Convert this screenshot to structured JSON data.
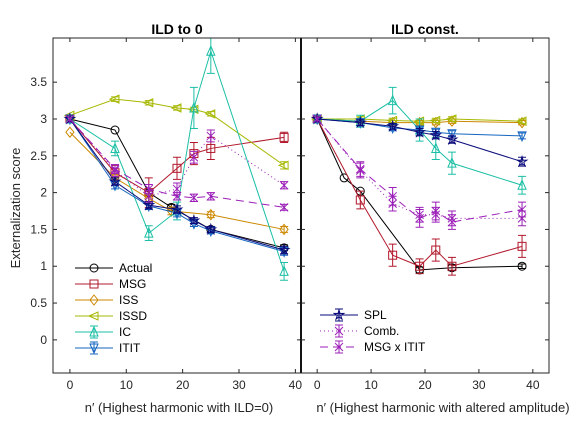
{
  "chart_data": [
    {
      "type": "line",
      "title": "ILD to 0",
      "xlabel": "n′ (Highest harmonic with ILD=0)",
      "ylabel": "Externalization score",
      "xlim": [
        -3,
        41
      ],
      "ylim": [
        -0.45,
        4.1
      ],
      "xticks": [
        0,
        10,
        20,
        30,
        40
      ],
      "yticks": [
        0,
        0.5,
        1,
        1.5,
        2,
        2.5,
        3,
        3.5
      ],
      "ytick_labels": [
        "0",
        "0.5",
        "1",
        "1.5",
        "2",
        "2.5",
        "3",
        "3.5"
      ],
      "legend_position": "lower-left",
      "series": [
        {
          "name": "Actual",
          "color": "#000000",
          "marker": "o",
          "dash": "",
          "x": [
            0,
            8,
            14,
            18,
            25,
            38
          ],
          "y": [
            3.0,
            2.85,
            2.0,
            1.8,
            1.5,
            1.25
          ],
          "err": [
            0,
            0,
            0,
            0.04,
            0.04,
            0.04
          ]
        },
        {
          "name": "MSG",
          "color": "#b2182b",
          "marker": "s",
          "dash": "",
          "x": [
            0,
            8,
            14,
            19,
            22,
            25,
            38
          ],
          "y": [
            3.0,
            2.27,
            2.0,
            2.33,
            2.53,
            2.6,
            2.75
          ],
          "err": [
            0,
            0.1,
            0.2,
            0.15,
            0.15,
            0.15,
            0.07
          ]
        },
        {
          "name": "ISS",
          "color": "#cc8800",
          "marker": "d",
          "dash": "",
          "x": [
            0,
            8,
            14,
            18,
            25,
            38
          ],
          "y": [
            2.82,
            2.2,
            1.92,
            1.75,
            1.7,
            1.5
          ],
          "err": [
            0,
            0.05,
            0.05,
            0.05,
            0.04,
            0.04
          ]
        },
        {
          "name": "ISSD",
          "color": "#a6b800",
          "marker": "<",
          "dash": "",
          "x": [
            0,
            8,
            14,
            19,
            22,
            25,
            38
          ],
          "y": [
            3.05,
            3.27,
            3.22,
            3.15,
            3.13,
            3.07,
            2.37
          ],
          "err": [
            0,
            0.03,
            0.03,
            0.03,
            0.03,
            0.03,
            0.05
          ]
        },
        {
          "name": "IC",
          "color": "#1bbfa5",
          "marker": "^",
          "dash": "",
          "x": [
            0,
            8,
            14,
            19,
            22,
            25,
            38
          ],
          "y": [
            3.0,
            2.6,
            1.45,
            1.75,
            3.15,
            3.92,
            0.93
          ],
          "err": [
            0,
            0.1,
            0.1,
            0.12,
            0.28,
            0.3,
            0.12
          ]
        },
        {
          "name": "ITIT",
          "color": "#1565c0",
          "marker": "v",
          "dash": "",
          "x": [
            0,
            8,
            14,
            19,
            22,
            25,
            38
          ],
          "y": [
            3.0,
            2.1,
            1.82,
            1.72,
            1.58,
            1.48,
            1.2
          ],
          "err": [
            0,
            0.05,
            0.05,
            0.05,
            0.04,
            0.04,
            0.05
          ]
        },
        {
          "name": "SPL",
          "color": "#0a0a7a",
          "marker": "star",
          "dash": "",
          "x": [
            0,
            8,
            14,
            19,
            22,
            25,
            38
          ],
          "y": [
            3.0,
            2.15,
            1.83,
            1.77,
            1.62,
            1.5,
            1.22
          ],
          "err": [
            0,
            0.05,
            0.05,
            0.05,
            0.04,
            0.04,
            0.05
          ]
        },
        {
          "name": "Comb.",
          "color": "#9b1fb8",
          "marker": "x",
          "dash": "1 3",
          "x": [
            0,
            8,
            14,
            19,
            22,
            25,
            38
          ],
          "y": [
            3.0,
            2.3,
            1.95,
            2.05,
            2.48,
            2.77,
            2.1
          ],
          "err": [
            0,
            0.08,
            0.08,
            0.08,
            0.08,
            0.08,
            0.05
          ]
        },
        {
          "name": "MSG x ITIT",
          "color": "#9b1fb8",
          "marker": "x",
          "dash": "8 5",
          "x": [
            0,
            8,
            14,
            19,
            22,
            25,
            38
          ],
          "y": [
            3.0,
            2.32,
            2.05,
            1.95,
            1.93,
            1.95,
            1.8
          ],
          "err": [
            0,
            0.06,
            0.06,
            0.05,
            0.05,
            0.05,
            0.04
          ]
        }
      ]
    },
    {
      "type": "line",
      "title": "ILD const.",
      "xlabel": "n′ (Highest harmonic with altered amplitude)",
      "xlim": [
        -3,
        43
      ],
      "ylim": [
        -0.45,
        4.1
      ],
      "xticks": [
        0,
        10,
        20,
        30,
        40
      ],
      "legend_position": "lower-left",
      "series": [
        {
          "name": "Actual",
          "color": "#000000",
          "marker": "o",
          "dash": "",
          "x": [
            0,
            5,
            8,
            19,
            25,
            38
          ],
          "y": [
            3.0,
            2.2,
            2.02,
            0.95,
            0.98,
            1.0
          ],
          "err": [
            0,
            0,
            0,
            0.04,
            0.04,
            0.03
          ]
        },
        {
          "name": "MSG",
          "color": "#b2182b",
          "marker": "s",
          "dash": "",
          "x": [
            0,
            8,
            14,
            19,
            22,
            25,
            38
          ],
          "y": [
            3.0,
            1.9,
            1.15,
            1.0,
            1.22,
            1.0,
            1.27
          ],
          "err": [
            0,
            0.12,
            0.15,
            0.1,
            0.15,
            0.12,
            0.15
          ]
        },
        {
          "name": "ISS",
          "color": "#cc8800",
          "marker": "d",
          "dash": "",
          "x": [
            0,
            8,
            14,
            19,
            22,
            25,
            38
          ],
          "y": [
            3.0,
            2.97,
            2.95,
            2.95,
            2.95,
            2.97,
            2.95
          ],
          "err": [
            0,
            0.03,
            0.03,
            0.03,
            0.03,
            0.03,
            0.03
          ]
        },
        {
          "name": "ISSD",
          "color": "#a6b800",
          "marker": "<",
          "dash": "",
          "x": [
            0,
            8,
            14,
            19,
            22,
            25,
            38
          ],
          "y": [
            3.0,
            3.0,
            2.98,
            2.97,
            2.98,
            3.0,
            2.97
          ],
          "err": [
            0,
            0.03,
            0.03,
            0.03,
            0.03,
            0.03,
            0.03
          ]
        },
        {
          "name": "IC",
          "color": "#1bbfa5",
          "marker": "^",
          "dash": "",
          "x": [
            0,
            8,
            14,
            19,
            22,
            25,
            38
          ],
          "y": [
            3.0,
            2.97,
            3.25,
            2.85,
            2.6,
            2.4,
            2.1
          ],
          "err": [
            0,
            0.08,
            0.18,
            0.15,
            0.15,
            0.15,
            0.12
          ]
        },
        {
          "name": "ITIT",
          "color": "#1565c0",
          "marker": "v",
          "dash": "",
          "x": [
            0,
            8,
            14,
            19,
            22,
            25,
            38
          ],
          "y": [
            3.0,
            2.95,
            2.88,
            2.85,
            2.82,
            2.8,
            2.77
          ],
          "err": [
            0,
            0.04,
            0.04,
            0.04,
            0.04,
            0.04,
            0.04
          ]
        },
        {
          "name": "SPL",
          "color": "#0a0a7a",
          "marker": "star",
          "dash": "",
          "x": [
            0,
            8,
            14,
            19,
            22,
            25,
            38
          ],
          "y": [
            3.0,
            2.95,
            2.9,
            2.82,
            2.78,
            2.72,
            2.42
          ],
          "err": [
            0,
            0.04,
            0.04,
            0.05,
            0.05,
            0.05,
            0.06
          ]
        },
        {
          "name": "Comb.",
          "color": "#9b1fb8",
          "marker": "x",
          "dash": "1 3",
          "x": [
            0,
            8,
            14,
            19,
            22,
            25,
            38
          ],
          "y": [
            3.0,
            2.3,
            1.85,
            1.7,
            1.7,
            1.65,
            1.65
          ],
          "err": [
            0,
            0.1,
            0.1,
            0.1,
            0.1,
            0.1,
            0.1
          ]
        },
        {
          "name": "MSG x ITIT",
          "color": "#9b1fb8",
          "marker": "x",
          "dash": "8 5",
          "x": [
            0,
            8,
            14,
            19,
            22,
            25,
            38
          ],
          "y": [
            3.0,
            2.32,
            1.95,
            1.65,
            1.75,
            1.6,
            1.77
          ],
          "err": [
            0,
            0.1,
            0.12,
            0.12,
            0.12,
            0.1,
            0.1
          ]
        }
      ]
    }
  ],
  "legend_groups": [
    [
      "Actual",
      "MSG",
      "ISS",
      "ISSD",
      "IC",
      "ITIT"
    ],
    [
      "SPL",
      "Comb.",
      "MSG x ITIT"
    ]
  ]
}
